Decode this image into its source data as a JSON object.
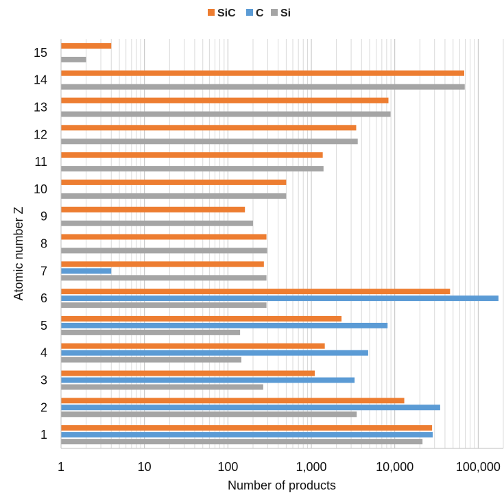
{
  "chart_data": {
    "type": "bar",
    "orientation": "horizontal",
    "xscale": "log",
    "xlim": [
      1,
      200000
    ],
    "xlabel": "Number of products",
    "ylabel": "Atomic number Z",
    "categories": [
      "1",
      "2",
      "3",
      "4",
      "5",
      "6",
      "7",
      "8",
      "9",
      "10",
      "11",
      "12",
      "13",
      "14",
      "15"
    ],
    "xticks": [
      "1",
      "10",
      "100",
      "1,000",
      "10,000",
      "100,000"
    ],
    "legend_position": "top",
    "grid": "vertical minor and major",
    "series": [
      {
        "name": "SiC",
        "color": "#ED7D31",
        "values": [
          28000,
          13000,
          1100,
          1450,
          2300,
          46000,
          270,
          290,
          160,
          500,
          1370,
          3450,
          8400,
          68000,
          4
        ]
      },
      {
        "name": "C",
        "color": "#5B9BD5",
        "values": [
          28500,
          35000,
          3300,
          4800,
          8200,
          175000,
          4,
          null,
          null,
          null,
          null,
          null,
          null,
          null,
          null
        ]
      },
      {
        "name": "Si",
        "color": "#A5A5A5",
        "values": [
          21500,
          3500,
          265,
          145,
          140,
          290,
          290,
          295,
          200,
          500,
          1400,
          3600,
          8900,
          69000,
          2
        ]
      }
    ]
  }
}
